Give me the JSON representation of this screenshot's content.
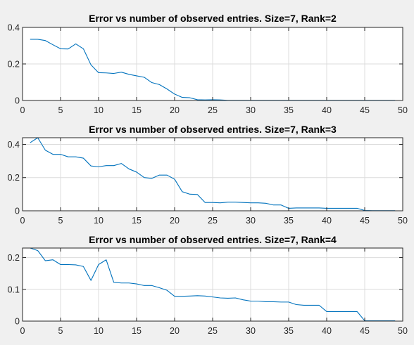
{
  "figure": {
    "background": "#f0f0f0",
    "line_color": "#0072bd"
  },
  "chart_data": [
    {
      "type": "line",
      "title": "Error vs number of observed entries. Size=7,  Rank=2",
      "xlabel": "",
      "ylabel": "",
      "xlim": [
        0,
        50
      ],
      "ylim": [
        0,
        0.4
      ],
      "xticks": [
        0,
        5,
        10,
        15,
        20,
        25,
        30,
        35,
        40,
        45,
        50
      ],
      "yticks": [
        0,
        0.2,
        0.4
      ],
      "ytick_labels": [
        "0",
        "0.2",
        "0.4"
      ],
      "grid": true,
      "series": [
        {
          "x": [
            1,
            2,
            3,
            4,
            5,
            6,
            7,
            8,
            9,
            10,
            11,
            12,
            13,
            14,
            15,
            16,
            17,
            18,
            19,
            20,
            21,
            22,
            23,
            24,
            25,
            26,
            27,
            28,
            29,
            30,
            31,
            32,
            33,
            34,
            35,
            36,
            37,
            38,
            39,
            40,
            41,
            42,
            43,
            44,
            45,
            46,
            47,
            48,
            49
          ],
          "y": [
            0.335,
            0.335,
            0.328,
            0.305,
            0.283,
            0.282,
            0.31,
            0.283,
            0.195,
            0.152,
            0.151,
            0.148,
            0.155,
            0.143,
            0.135,
            0.127,
            0.098,
            0.087,
            0.063,
            0.035,
            0.017,
            0.015,
            0.004,
            0.003,
            0.004,
            0.003,
            0.001,
            0.001,
            0.001,
            0.001,
            0.001,
            0.001,
            0.001,
            0.001,
            0.001,
            0.001,
            0.001,
            0.001,
            0.001,
            0.001,
            0.001,
            0.001,
            0.001,
            0.001,
            0.001,
            0.001,
            0.001,
            0.001,
            0.001
          ]
        }
      ]
    },
    {
      "type": "line",
      "title": "Error vs number of observed entries. Size=7,  Rank=3",
      "xlabel": "",
      "ylabel": "",
      "xlim": [
        0,
        50
      ],
      "ylim": [
        0,
        0.44
      ],
      "xticks": [
        0,
        5,
        10,
        15,
        20,
        25,
        30,
        35,
        40,
        45,
        50
      ],
      "yticks": [
        0,
        0.2,
        0.4
      ],
      "ytick_labels": [
        "0",
        "0.2",
        "0.4"
      ],
      "grid": true,
      "series": [
        {
          "x": [
            1,
            2,
            3,
            4,
            5,
            6,
            7,
            8,
            9,
            10,
            11,
            12,
            13,
            14,
            15,
            16,
            17,
            18,
            19,
            20,
            21,
            22,
            23,
            24,
            25,
            26,
            27,
            28,
            29,
            30,
            31,
            32,
            33,
            34,
            35,
            36,
            37,
            38,
            39,
            40,
            41,
            42,
            43,
            44,
            45,
            46,
            47,
            48,
            49
          ],
          "y": [
            0.41,
            0.44,
            0.365,
            0.34,
            0.34,
            0.325,
            0.325,
            0.317,
            0.27,
            0.265,
            0.272,
            0.272,
            0.285,
            0.252,
            0.233,
            0.2,
            0.195,
            0.215,
            0.215,
            0.19,
            0.115,
            0.1,
            0.098,
            0.05,
            0.05,
            0.048,
            0.052,
            0.052,
            0.05,
            0.048,
            0.048,
            0.045,
            0.035,
            0.035,
            0.015,
            0.017,
            0.017,
            0.017,
            0.017,
            0.015,
            0.015,
            0.015,
            0.015,
            0.015,
            0.002,
            0.001,
            0.001,
            0.001,
            0.001
          ]
        }
      ]
    },
    {
      "type": "line",
      "title": "Error vs number of observed entries. Size=7,  Rank=4",
      "xlabel": "",
      "ylabel": "",
      "xlim": [
        0,
        50
      ],
      "ylim": [
        0,
        0.23
      ],
      "xticks": [
        0,
        5,
        10,
        15,
        20,
        25,
        30,
        35,
        40,
        45,
        50
      ],
      "yticks": [
        0,
        0.1,
        0.2
      ],
      "ytick_labels": [
        "0",
        "0.1",
        "0.2"
      ],
      "grid": true,
      "series": [
        {
          "x": [
            1,
            2,
            3,
            4,
            5,
            6,
            7,
            8,
            9,
            10,
            11,
            12,
            13,
            14,
            15,
            16,
            17,
            18,
            19,
            20,
            21,
            22,
            23,
            24,
            25,
            26,
            27,
            28,
            29,
            30,
            31,
            32,
            33,
            34,
            35,
            36,
            37,
            38,
            39,
            40,
            41,
            42,
            43,
            44,
            45,
            46,
            47,
            48,
            49
          ],
          "y": [
            0.23,
            0.222,
            0.19,
            0.193,
            0.178,
            0.178,
            0.177,
            0.172,
            0.128,
            0.178,
            0.193,
            0.122,
            0.12,
            0.12,
            0.117,
            0.112,
            0.112,
            0.105,
            0.097,
            0.078,
            0.078,
            0.079,
            0.08,
            0.079,
            0.076,
            0.073,
            0.072,
            0.073,
            0.067,
            0.063,
            0.063,
            0.061,
            0.061,
            0.06,
            0.06,
            0.052,
            0.05,
            0.05,
            0.05,
            0.03,
            0.03,
            0.03,
            0.03,
            0.03,
            0.001,
            0.001,
            0.001,
            0.001,
            0.001
          ]
        }
      ]
    }
  ]
}
